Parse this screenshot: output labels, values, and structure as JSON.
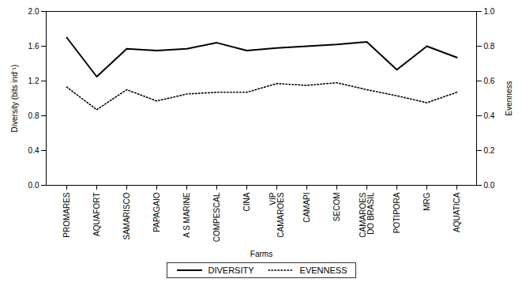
{
  "chart_data": {
    "type": "line",
    "xlabel": "Farms",
    "ylabel": "Diversity (bits ind⁻¹)",
    "y2label": "Evenness",
    "categories": [
      "PROMARES",
      "AQUAFORT",
      "SAMARISCO",
      "PAPAGAIO",
      "A S MARINE",
      "COMPESCAL",
      "CINA",
      "VIP\nCAMAROES",
      "CAMAPI",
      "SECOM",
      "CAMAROES\nDO BRASIL",
      "POTIPORA",
      "MRG",
      "AQUATICA"
    ],
    "series": [
      {
        "name": "DIVERSITY",
        "color": "black",
        "line_style": "solid",
        "values": [
          1.7,
          1.25,
          1.57,
          1.55,
          1.57,
          1.64,
          1.55,
          1.58,
          1.6,
          1.62,
          1.65,
          1.33,
          1.6,
          1.47
        ]
      },
      {
        "name": "EVENNESS",
        "color": "black",
        "line_style": "dotted",
        "axis": "y2",
        "values": [
          0.565,
          0.435,
          0.55,
          0.485,
          0.525,
          0.535,
          0.535,
          0.585,
          0.575,
          0.59,
          0.55,
          0.515,
          0.475,
          0.535
        ]
      }
    ],
    "ylim": [
      0,
      2
    ],
    "yticks": [
      {
        "value": 0,
        "label": "0.0"
      },
      0.4,
      0.8,
      1.2,
      1.6,
      {
        "value": 2,
        "label": "2.0"
      }
    ],
    "y2lim": [
      0,
      1
    ],
    "y2ticks": [
      {
        "value": 0,
        "label": "0.0"
      },
      0.2,
      0.4,
      0.6,
      0.8,
      {
        "value": 1,
        "label": "1.0"
      }
    ],
    "legend": "bottom"
  }
}
